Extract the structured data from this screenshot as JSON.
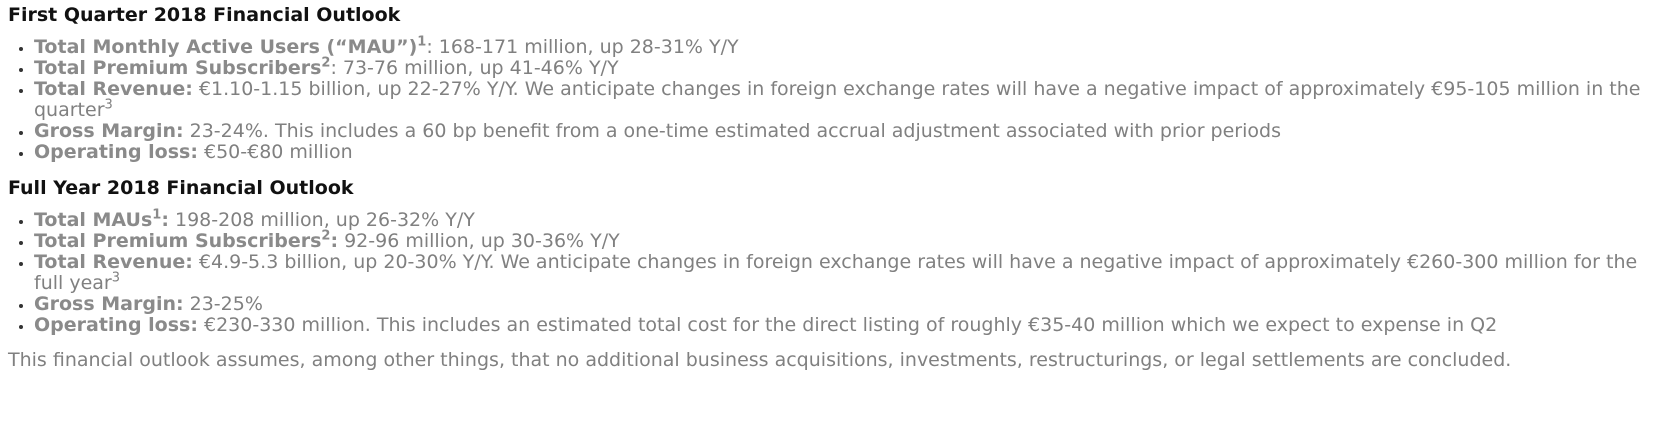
{
  "q1": {
    "title": "First Quarter 2018 Financial Outlook",
    "items": [
      {
        "label": "Total Monthly Active Users (“MAU”)",
        "sup": "1",
        "label_colon": "",
        "text": ": 168-171 million, up 28-31% Y/Y",
        "trail_sup": ""
      },
      {
        "label": "Total Premium Subscribers",
        "sup": "2",
        "label_colon": "",
        "text": ": 73-76 million, up 41-46% Y/Y",
        "trail_sup": ""
      },
      {
        "label": "Total Revenue:",
        "sup": "",
        "label_colon": "",
        "text": " €1.10-1.15 billion, up 22-27% Y/Y. We anticipate changes in foreign exchange rates will have a negative impact of approximately €95-105 million in the quarter",
        "trail_sup": "3"
      },
      {
        "label": "Gross Margin:",
        "sup": "",
        "label_colon": "",
        "text": " 23-24%. This includes a 60 bp benefit from a one-time estimated accrual adjustment associated with prior periods",
        "trail_sup": ""
      },
      {
        "label": "Operating loss:",
        "sup": "",
        "label_colon": "",
        "text": " €50-€80 million",
        "trail_sup": ""
      }
    ]
  },
  "fy": {
    "title": "Full Year 2018 Financial Outlook",
    "items": [
      {
        "label": "Total MAUs",
        "sup": "1",
        "label_colon": ":",
        "text": " 198-208 million, up 26-32% Y/Y",
        "trail_sup": ""
      },
      {
        "label": "Total Premium Subscribers",
        "sup": "2",
        "label_colon": ":",
        "text": " 92-96 million, up 30-36% Y/Y",
        "trail_sup": ""
      },
      {
        "label": "Total Revenue:",
        "sup": "",
        "label_colon": "",
        "text": " €4.9-5.3 billion, up 20-30% Y/Y. We anticipate changes in foreign exchange rates will have a negative impact of approximately €260-300 million for the full year",
        "trail_sup": "3"
      },
      {
        "label": "Gross Margin:",
        "sup": "",
        "label_colon": "",
        "text": " 23-25%",
        "trail_sup": ""
      },
      {
        "label": "Operating loss:",
        "sup": "",
        "label_colon": "",
        "text": " €230-330 million. This includes an estimated total cost for the direct listing of roughly €35-40 million which we expect to expense in Q2",
        "trail_sup": ""
      }
    ]
  },
  "footer": {
    "note": "This financial outlook assumes, among other things, that no additional business acquisitions, investments, restructurings, or legal settlements are concluded."
  }
}
